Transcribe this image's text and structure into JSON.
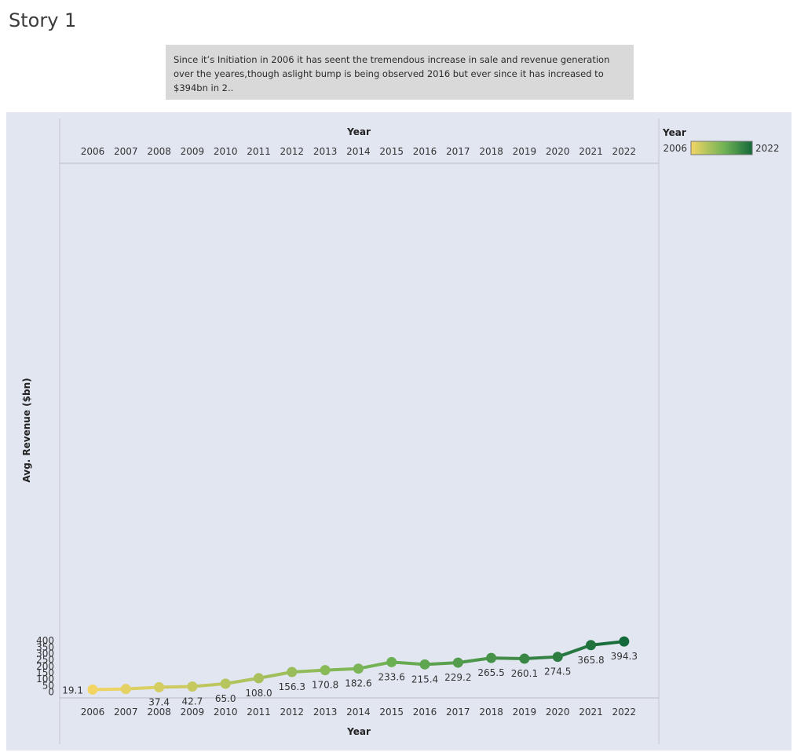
{
  "story": {
    "title": "Story 1"
  },
  "caption": {
    "text": "Since it’s Initiation in 2006 it has seent the tremendous increase in sale and revenue generation over the yeares,though aslight bump is being observed 2016 but ever since it has increased to $394bn in 2.."
  },
  "legend": {
    "title": "Year",
    "min_label": "2006",
    "max_label": "2022",
    "color_start": "#f2d565",
    "color_mid": "#6fb255",
    "color_end": "#14693a"
  },
  "chart_data": {
    "type": "line",
    "xlabel": "Year",
    "ylabel": "Avg. Revenue ($bn)",
    "ylim": [
      0,
      420
    ],
    "yticks": [
      0,
      50,
      100,
      150,
      200,
      250,
      300,
      350,
      400
    ],
    "grid": false,
    "legend_position": "top-right",
    "x": [
      "2006",
      "2007",
      "2008",
      "2009",
      "2010",
      "2011",
      "2012",
      "2013",
      "2014",
      "2015",
      "2016",
      "2017",
      "2018",
      "2019",
      "2020",
      "2021",
      "2022"
    ],
    "values": [
      19.1,
      23.5,
      37.4,
      42.7,
      65.0,
      108.0,
      156.3,
      170.8,
      182.6,
      233.6,
      215.4,
      229.2,
      265.5,
      260.1,
      274.5,
      365.8,
      394.3
    ],
    "data_labels": [
      "19.1",
      "",
      "37.4",
      "42.7",
      "65.0",
      "108.0",
      "156.3",
      "170.8",
      "182.6",
      "233.6",
      "215.4",
      "229.2",
      "265.5",
      "260.1",
      "274.5",
      "365.8",
      "394.3"
    ]
  }
}
